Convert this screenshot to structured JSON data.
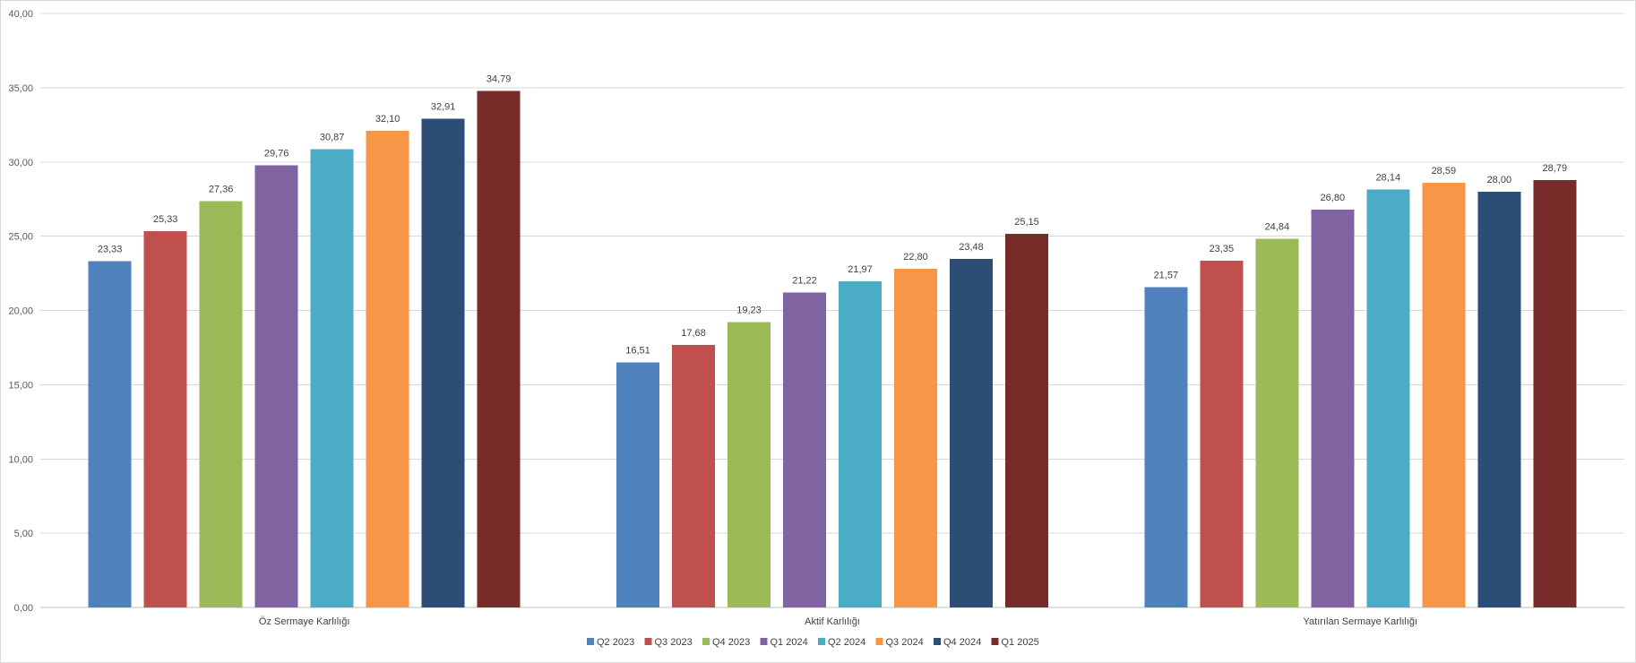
{
  "chart_data": {
    "type": "bar",
    "title": "",
    "xlabel": "",
    "ylabel": "",
    "ylim": [
      0,
      40
    ],
    "y_ticks": [
      "0,00",
      "5,00",
      "10,00",
      "15,00",
      "20,00",
      "25,00",
      "30,00",
      "35,00",
      "40,00"
    ],
    "y_tick_values": [
      0,
      5,
      10,
      15,
      20,
      25,
      30,
      35,
      40
    ],
    "grid": true,
    "legend_position": "bottom-center",
    "categories": [
      "Öz Sermaye Karlılığı",
      "Aktif Karlılığı",
      "Yatırılan Sermaye Karlılığı"
    ],
    "series": [
      {
        "name": "Q2 2023",
        "color": "#4f81bd",
        "values": [
          23.33,
          16.51,
          21.57
        ],
        "labels": [
          "23,33",
          "16,51",
          "21,57"
        ]
      },
      {
        "name": "Q3 2023",
        "color": "#c0504d",
        "values": [
          25.33,
          17.68,
          23.35
        ],
        "labels": [
          "25,33",
          "17,68",
          "23,35"
        ]
      },
      {
        "name": "Q4 2023",
        "color": "#9bbb59",
        "values": [
          27.36,
          19.23,
          24.84
        ],
        "labels": [
          "27,36",
          "19,23",
          "24,84"
        ]
      },
      {
        "name": "Q1 2024",
        "color": "#8064a2",
        "values": [
          29.76,
          21.22,
          26.8
        ],
        "labels": [
          "29,76",
          "21,22",
          "26,80"
        ]
      },
      {
        "name": "Q2 2024",
        "color": "#4bacc6",
        "values": [
          30.87,
          21.97,
          28.14
        ],
        "labels": [
          "30,87",
          "21,97",
          "28,14"
        ]
      },
      {
        "name": "Q3 2024",
        "color": "#f79646",
        "values": [
          32.1,
          22.8,
          28.59
        ],
        "labels": [
          "32,10",
          "22,80",
          "28,59"
        ]
      },
      {
        "name": "Q4 2024",
        "color": "#2c4d75",
        "values": [
          32.91,
          23.48,
          28.0
        ],
        "labels": [
          "32,91",
          "23,48",
          "28,00"
        ]
      },
      {
        "name": "Q1 2025",
        "color": "#772c2a",
        "values": [
          34.79,
          25.15,
          28.79
        ],
        "labels": [
          "34,79",
          "25,15",
          "28,79"
        ]
      }
    ]
  }
}
